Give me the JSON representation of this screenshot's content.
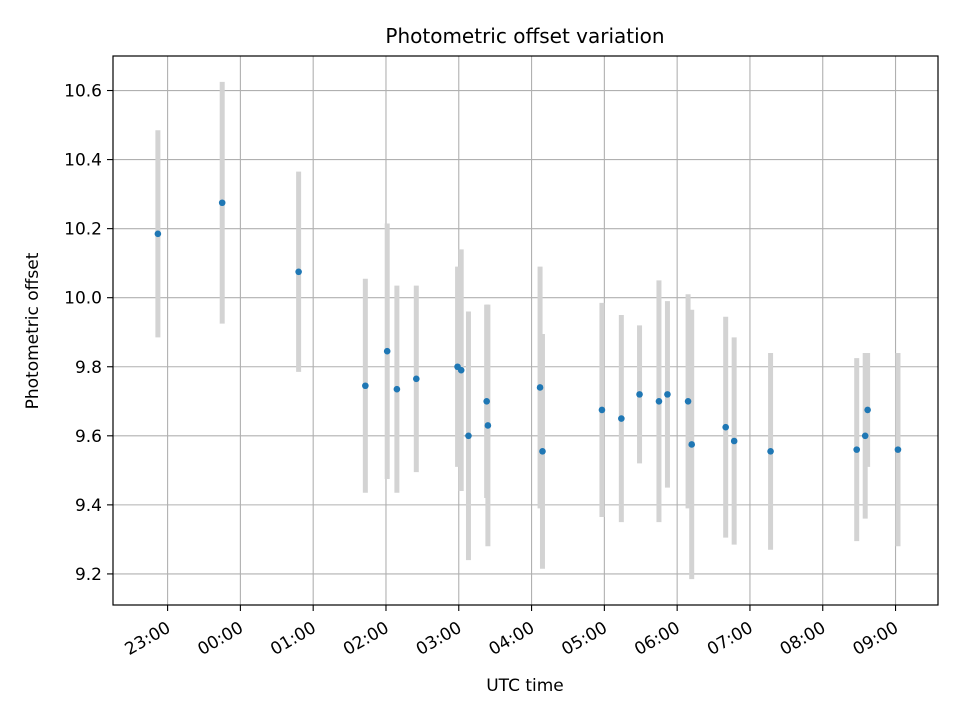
{
  "chart_data": {
    "type": "scatter",
    "title": "Photometric offset variation",
    "xlabel": "UTC time",
    "ylabel": "Photometric offset",
    "x_unit": "time of day (UTC), spanning midnight",
    "xlim": [
      "22:15",
      "09:35"
    ],
    "ylim": [
      9.11,
      10.7
    ],
    "x_ticks": [
      "23:00",
      "00:00",
      "01:00",
      "02:00",
      "03:00",
      "04:00",
      "05:00",
      "06:00",
      "07:00",
      "08:00",
      "09:00"
    ],
    "y_ticks": [
      "9.2",
      "9.4",
      "9.6",
      "9.8",
      "10.0",
      "10.2",
      "10.4",
      "10.6"
    ],
    "grid": true,
    "legend": "none",
    "colors": {
      "point": "#1f77b4",
      "errorbar": "#d3d3d3",
      "grid": "#b0b0b0"
    },
    "series": [
      {
        "points": [
          {
            "x": "22:52",
            "y": 10.185,
            "err": 0.3
          },
          {
            "x": "23:45",
            "y": 10.275,
            "err": 0.35
          },
          {
            "x": "00:48",
            "y": 10.075,
            "err": 0.29
          },
          {
            "x": "01:43",
            "y": 9.745,
            "err": 0.31
          },
          {
            "x": "02:01",
            "y": 9.845,
            "err": 0.37
          },
          {
            "x": "02:09",
            "y": 9.735,
            "err": 0.3
          },
          {
            "x": "02:25",
            "y": 9.765,
            "err": 0.27
          },
          {
            "x": "02:59",
            "y": 9.8,
            "err": 0.29
          },
          {
            "x": "03:02",
            "y": 9.79,
            "err": 0.35
          },
          {
            "x": "03:08",
            "y": 9.6,
            "err": 0.36
          },
          {
            "x": "03:23",
            "y": 9.7,
            "err": 0.28
          },
          {
            "x": "03:24",
            "y": 9.63,
            "err": 0.35
          },
          {
            "x": "04:07",
            "y": 9.74,
            "err": 0.35
          },
          {
            "x": "04:09",
            "y": 9.555,
            "err": 0.34
          },
          {
            "x": "04:58",
            "y": 9.675,
            "err": 0.31
          },
          {
            "x": "05:14",
            "y": 9.65,
            "err": 0.3
          },
          {
            "x": "05:29",
            "y": 9.72,
            "err": 0.2
          },
          {
            "x": "05:45",
            "y": 9.7,
            "err": 0.35
          },
          {
            "x": "05:52",
            "y": 9.72,
            "err": 0.27
          },
          {
            "x": "06:09",
            "y": 9.7,
            "err": 0.31
          },
          {
            "x": "06:12",
            "y": 9.575,
            "err": 0.39
          },
          {
            "x": "06:40",
            "y": 9.625,
            "err": 0.32
          },
          {
            "x": "06:47",
            "y": 9.585,
            "err": 0.3
          },
          {
            "x": "07:17",
            "y": 9.555,
            "err": 0.285
          },
          {
            "x": "08:28",
            "y": 9.56,
            "err": 0.265
          },
          {
            "x": "08:35",
            "y": 9.6,
            "err": 0.24
          },
          {
            "x": "08:37",
            "y": 9.675,
            "err": 0.165
          },
          {
            "x": "09:02",
            "y": 9.56,
            "err": 0.28
          }
        ]
      }
    ]
  }
}
